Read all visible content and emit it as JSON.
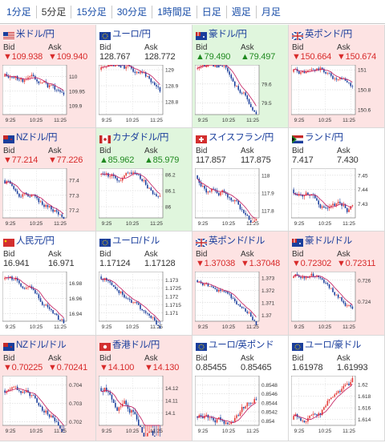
{
  "tabs": [
    {
      "label": "1分足",
      "active": false
    },
    {
      "label": "5分足",
      "active": true
    },
    {
      "label": "15分足",
      "active": false
    },
    {
      "label": "30分足",
      "active": false
    },
    {
      "label": "1時間足",
      "active": false
    },
    {
      "label": "日足",
      "active": false
    },
    {
      "label": "週足",
      "active": false
    },
    {
      "label": "月足",
      "active": false
    }
  ],
  "labels": {
    "bid": "Bid",
    "ask": "Ask"
  },
  "time_labels": [
    "9:25",
    "10:25",
    "11:25"
  ],
  "pairs": [
    {
      "name": "米ドル/円",
      "flag": "us-flag-icon",
      "dir": "down",
      "bid": "▼109.938",
      "ask": "▼109.940",
      "y_ticks": [
        "110",
        "109.95",
        "109.9"
      ],
      "ylim": [
        109.87,
        110.04
      ],
      "start": 110.0,
      "drift": -0.085,
      "vol": 0.012,
      "seed": 11
    },
    {
      "name": "ユーロ/円",
      "flag": "eu-flag-icon",
      "dir": "none",
      "bid": "128.767",
      "ask": "128.772",
      "y_ticks": [
        "129",
        "128.9",
        "128.8"
      ],
      "ylim": [
        128.72,
        129.03
      ],
      "start": 129.0,
      "drift": -0.22,
      "vol": 0.02,
      "seed": 23
    },
    {
      "name": "豪ドル/円",
      "flag": "au-flag-icon",
      "dir": "up",
      "bid": "▲79.490",
      "ask": "▲79.497",
      "y_ticks": [
        "79.6",
        "79.5"
      ],
      "ylim": [
        79.44,
        79.7
      ],
      "start": 79.68,
      "drift": -0.2,
      "vol": 0.015,
      "seed": 37
    },
    {
      "name": "英ポンド/円",
      "flag": "gb-flag-icon",
      "dir": "down",
      "bid": "▼150.664",
      "ask": "▼150.674",
      "y_ticks": [
        "151",
        "150.8",
        "150.6"
      ],
      "ylim": [
        150.55,
        151.05
      ],
      "start": 150.98,
      "drift": -0.32,
      "vol": 0.03,
      "seed": 41
    },
    {
      "name": "NZドル/円",
      "flag": "nz-flag-icon",
      "dir": "down",
      "bid": "▼77.214",
      "ask": "▼77.226",
      "y_ticks": [
        "77.4",
        "77.3",
        "77.2"
      ],
      "ylim": [
        77.15,
        77.48
      ],
      "start": 77.4,
      "drift": -0.18,
      "vol": 0.02,
      "seed": 53
    },
    {
      "name": "カナダドル/円",
      "flag": "ca-flag-icon",
      "dir": "up",
      "bid": "▲85.962",
      "ask": "▲85.979",
      "y_ticks": [
        "86.2",
        "86.1",
        "86"
      ],
      "ylim": [
        85.93,
        86.24
      ],
      "start": 86.2,
      "drift": -0.22,
      "vol": 0.02,
      "seed": 61
    },
    {
      "name": "スイスフラン/円",
      "flag": "ch-flag-icon",
      "dir": "none",
      "bid": "117.857",
      "ask": "117.875",
      "y_ticks": [
        "118",
        "117.9",
        "117.8"
      ],
      "ylim": [
        117.76,
        118.04
      ],
      "start": 118.0,
      "drift": -0.2,
      "vol": 0.02,
      "seed": 71
    },
    {
      "name": "ランド/円",
      "flag": "za-flag-icon",
      "dir": "none",
      "bid": "7.417",
      "ask": "7.430",
      "y_ticks": [
        "7.45",
        "7.44",
        "7.43"
      ],
      "ylim": [
        7.42,
        7.455
      ],
      "start": 7.44,
      "drift": -0.012,
      "vol": 0.003,
      "seed": 83
    },
    {
      "name": "人民元/円",
      "flag": "cn-flag-icon",
      "dir": "none",
      "bid": "16.941",
      "ask": "16.971",
      "y_ticks": [
        "16.98",
        "16.96",
        "16.94"
      ],
      "ylim": [
        16.93,
        16.995
      ],
      "start": 16.985,
      "drift": -0.04,
      "vol": 0.004,
      "seed": 97
    },
    {
      "name": "ユーロ/ドル",
      "flag": "eu-flag-icon",
      "dir": "none",
      "bid": "1.17124",
      "ask": "1.17128",
      "y_ticks": [
        "1.173",
        "1.1725",
        "1.172",
        "1.1715",
        "1.171"
      ],
      "ylim": [
        1.1705,
        1.1735
      ],
      "start": 1.1732,
      "drift": -0.002,
      "vol": 0.00018,
      "seed": 101
    },
    {
      "name": "英ポンド/ドル",
      "flag": "gb-flag-icon",
      "dir": "down",
      "bid": "▼1.37038",
      "ask": "▼1.37048",
      "y_ticks": [
        "1.373",
        "1.372",
        "1.371",
        "1.37"
      ],
      "ylim": [
        1.3695,
        1.3735
      ],
      "start": 1.3728,
      "drift": -0.0028,
      "vol": 0.0002,
      "seed": 113
    },
    {
      "name": "豪ドル/ドル",
      "flag": "au-flag-icon",
      "dir": "down",
      "bid": "▼0.72302",
      "ask": "▼0.72311",
      "y_ticks": [
        "0.726",
        "0.724"
      ],
      "ylim": [
        0.7222,
        0.7268
      ],
      "start": 0.7262,
      "drift": -0.0032,
      "vol": 0.00025,
      "seed": 127
    },
    {
      "name": "NZドル/ドル",
      "flag": "nz-flag-icon",
      "dir": "down",
      "bid": "▼0.70225",
      "ask": "▼0.70241",
      "y_ticks": [
        "0.704",
        "0.703",
        "0.702"
      ],
      "ylim": [
        0.7018,
        0.7045
      ],
      "start": 0.7037,
      "drift": -0.0015,
      "vol": 0.00018,
      "seed": 131
    },
    {
      "name": "香港ドル/円",
      "flag": "hk-flag-icon",
      "dir": "down",
      "bid": "▼14.100",
      "ask": "▼14.130",
      "y_ticks": [
        "14.12",
        "14.11",
        "14.1"
      ],
      "ylim": [
        14.09,
        14.13
      ],
      "start": 14.12,
      "drift": -0.022,
      "vol": 0.004,
      "seed": 137
    },
    {
      "name": "ユーロ/英ポンド",
      "flag": "eu-flag-icon",
      "dir": "none",
      "bid": "0.85455",
      "ask": "0.85465",
      "y_ticks": [
        "0.8548",
        "0.8546",
        "0.8544",
        "0.8542",
        "0.854"
      ],
      "ylim": [
        0.8539,
        0.855
      ],
      "start": 0.8541,
      "drift": 0.0007,
      "vol": 8e-05,
      "seed": 149
    },
    {
      "name": "ユーロ/豪ドル",
      "flag": "eu-flag-icon",
      "dir": "none",
      "bid": "1.61978",
      "ask": "1.61993",
      "y_ticks": [
        "1.62",
        "1.618",
        "1.616",
        "1.614"
      ],
      "ylim": [
        1.613,
        1.6215
      ],
      "start": 1.614,
      "drift": 0.0065,
      "vol": 0.0006,
      "seed": 151
    }
  ]
}
